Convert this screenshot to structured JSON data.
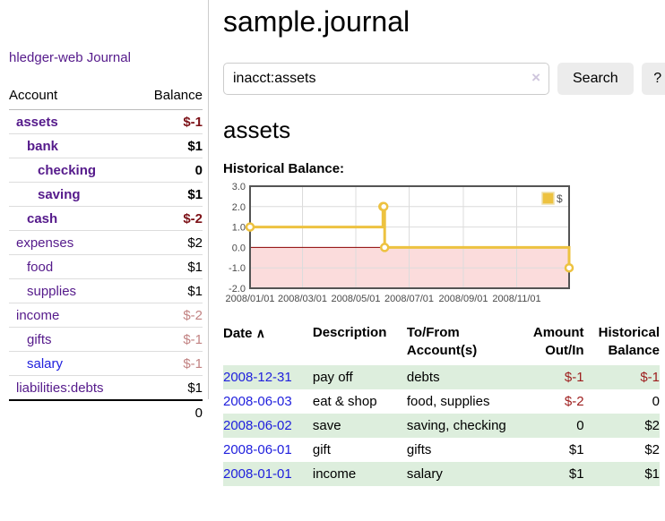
{
  "app_title": "hledger-web",
  "sidebar": {
    "journal_link": "Journal",
    "accounts": {
      "header_account": "Account",
      "header_balance": "Balance",
      "rows": [
        {
          "name": "assets",
          "balance": "$-1"
        },
        {
          "name": "bank",
          "balance": "$1"
        },
        {
          "name": "checking",
          "balance": "0"
        },
        {
          "name": "saving",
          "balance": "$1"
        },
        {
          "name": "cash",
          "balance": "$-2"
        },
        {
          "name": "expenses",
          "balance": "$2"
        },
        {
          "name": "food",
          "balance": "$1"
        },
        {
          "name": "supplies",
          "balance": "$1"
        },
        {
          "name": "income",
          "balance": "$-2"
        },
        {
          "name": "gifts",
          "balance": "$-1"
        },
        {
          "name": "salary",
          "balance": "$-1"
        },
        {
          "name": "liabilities:debts",
          "balance": "$1"
        }
      ],
      "total": "0"
    }
  },
  "main": {
    "title": "sample.journal",
    "search": {
      "value": "inacct:assets",
      "clear_icon": "×",
      "search_button": "Search",
      "help_button": "?"
    },
    "account_heading": "assets",
    "register": {
      "headers": {
        "date": "Date",
        "sort_icon": "∧",
        "description": "Description",
        "accounts": "To/From Account(s)",
        "amount": "Amount Out/In",
        "balance": "Historical Balance"
      },
      "rows": [
        {
          "date": "2008-12-31",
          "description": "pay off",
          "accounts": "debts",
          "amount": "$-1",
          "balance": "$-1"
        },
        {
          "date": "2008-06-03",
          "description": "eat & shop",
          "accounts": "food, supplies",
          "amount": "$-2",
          "balance": "0"
        },
        {
          "date": "2008-06-02",
          "description": "save",
          "accounts": "saving, checking",
          "amount": "0",
          "balance": "$2"
        },
        {
          "date": "2008-06-01",
          "description": "gift",
          "accounts": "gifts",
          "amount": "$1",
          "balance": "$2"
        },
        {
          "date": "2008-01-01",
          "description": "income",
          "accounts": "salary",
          "amount": "$1",
          "balance": "$1"
        }
      ]
    }
  },
  "chart_data": {
    "type": "line",
    "title": "Historical Balance:",
    "steps": true,
    "series": [
      {
        "name": "$",
        "color": "#edc240",
        "points": [
          {
            "date": "2008-01-01",
            "value": 1
          },
          {
            "date": "2008-06-01",
            "value": 2
          },
          {
            "date": "2008-06-02",
            "value": 2
          },
          {
            "date": "2008-06-03",
            "value": 0
          },
          {
            "date": "2008-12-31",
            "value": -1
          }
        ]
      }
    ],
    "x_range": [
      "2008-01-01",
      "2008-12-31"
    ],
    "x_ticks": [
      "2008/01/01",
      "2008/03/01",
      "2008/05/01",
      "2008/07/01",
      "2008/09/01",
      "2008/11/01"
    ],
    "y_ticks": [
      "3.0",
      "2.0",
      "1.0",
      "0.0",
      "-1.0",
      "-2.0"
    ],
    "ylim": [
      -2,
      3
    ],
    "grid": true,
    "grid_color": "#dcdcdc",
    "border_color": "#545454",
    "tick_label_color": "#4a4a4a",
    "negative_region_color": "#fbdcdc",
    "zero_line_color": "#8b0000",
    "legend": {
      "label": "$",
      "position": "top-right"
    }
  }
}
